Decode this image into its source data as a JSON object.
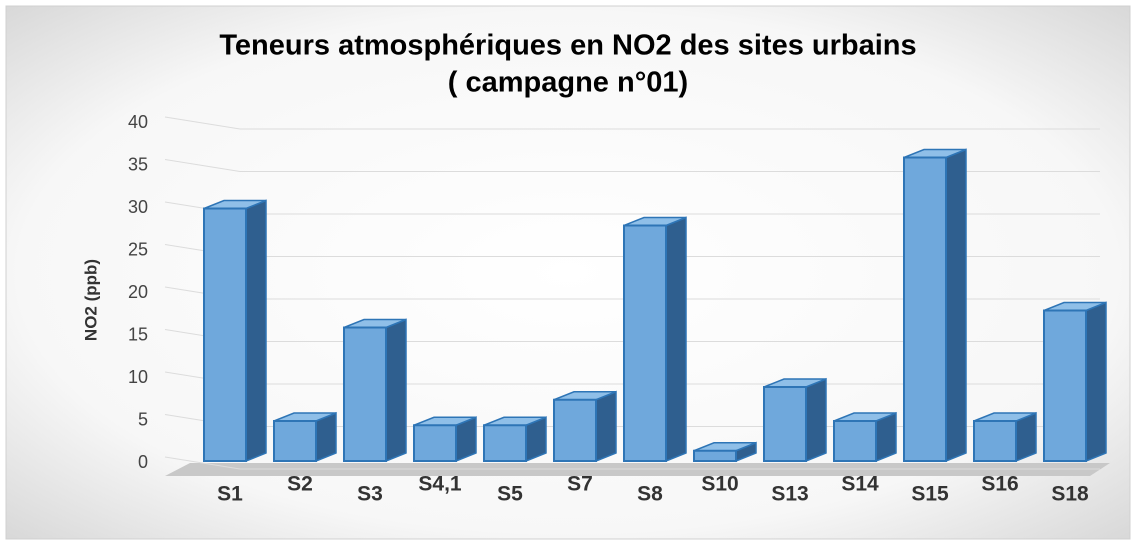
{
  "chart_data": {
    "type": "bar3d",
    "title": [
      "Teneurs atmosphériques en NO2 des sites urbains",
      "( campagne n°01)"
    ],
    "y_label": "NO2 (ppb)",
    "categories": [
      "S1",
      "S2",
      "S3",
      "S4,1",
      "S5",
      "S7",
      "S8",
      "S10",
      "S13",
      "S14",
      "S15",
      "S16",
      "S18"
    ],
    "values": [
      29,
      4,
      15,
      3.5,
      3.5,
      6.5,
      27,
      0.5,
      8,
      4,
      35,
      4,
      17
    ],
    "color": "#6fa8dc",
    "ylim": [
      0,
      40
    ],
    "yticks": [
      0,
      5,
      10,
      15,
      20,
      25,
      30,
      35,
      40
    ],
    "grid": true
  }
}
